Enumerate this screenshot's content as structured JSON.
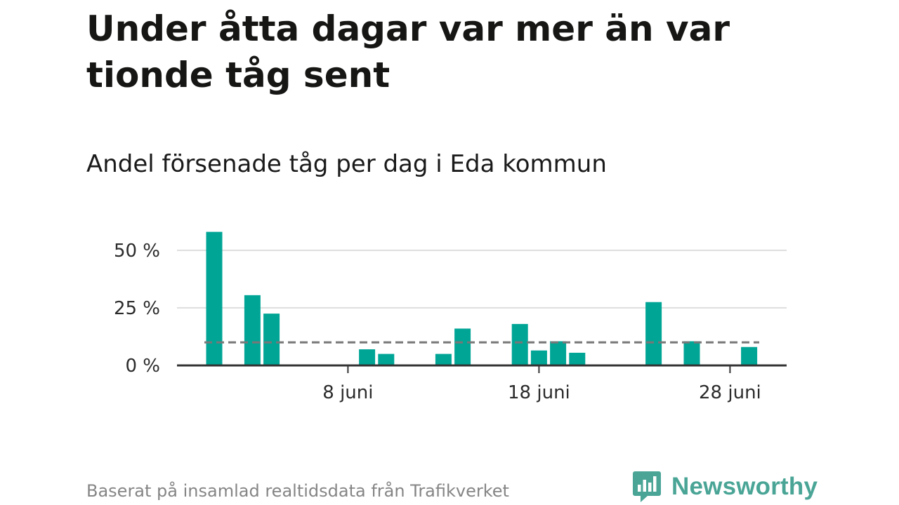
{
  "title": "Under åtta dagar var mer än var tionde tåg sent",
  "subtitle": "Andel försenade tåg per dag i Eda kommun",
  "source": "Baserat på insamlad realtidsdata från Trafikverket",
  "brand": {
    "name": "Newsworthy",
    "icon": "newsworthy-logo-icon"
  },
  "colors": {
    "bar": "#00a596",
    "reference_line": "#777777",
    "grid": "#dddddd",
    "axis": "#333333",
    "brand": "#4aa596"
  },
  "chart_data": {
    "type": "bar",
    "unit": "%",
    "ylim": [
      0,
      60
    ],
    "yticks": [
      0,
      25,
      50
    ],
    "ytick_labels": [
      "0 %",
      "25 %",
      "50 %"
    ],
    "x_start_day": 1,
    "x_end_day": 30,
    "xticks": [
      8,
      18,
      28
    ],
    "xtick_labels": [
      "8 juni",
      "18 juni",
      "28 juni"
    ],
    "reference_line": 10,
    "grid": true,
    "series": [
      {
        "days": [
          1,
          2,
          3,
          4,
          5,
          6,
          7,
          8,
          9,
          10,
          11,
          12,
          13,
          14,
          15,
          16,
          17,
          18,
          19,
          20,
          21,
          22,
          23,
          24,
          25,
          26,
          27,
          28,
          29,
          30
        ],
        "values": [
          58,
          0,
          30.5,
          22.5,
          0,
          0,
          0,
          0,
          7,
          5,
          0,
          0,
          5,
          16,
          0,
          0,
          18,
          6.5,
          10.5,
          5.5,
          0,
          0,
          0,
          27.5,
          0,
          10.5,
          0,
          0,
          8,
          0
        ]
      }
    ]
  }
}
